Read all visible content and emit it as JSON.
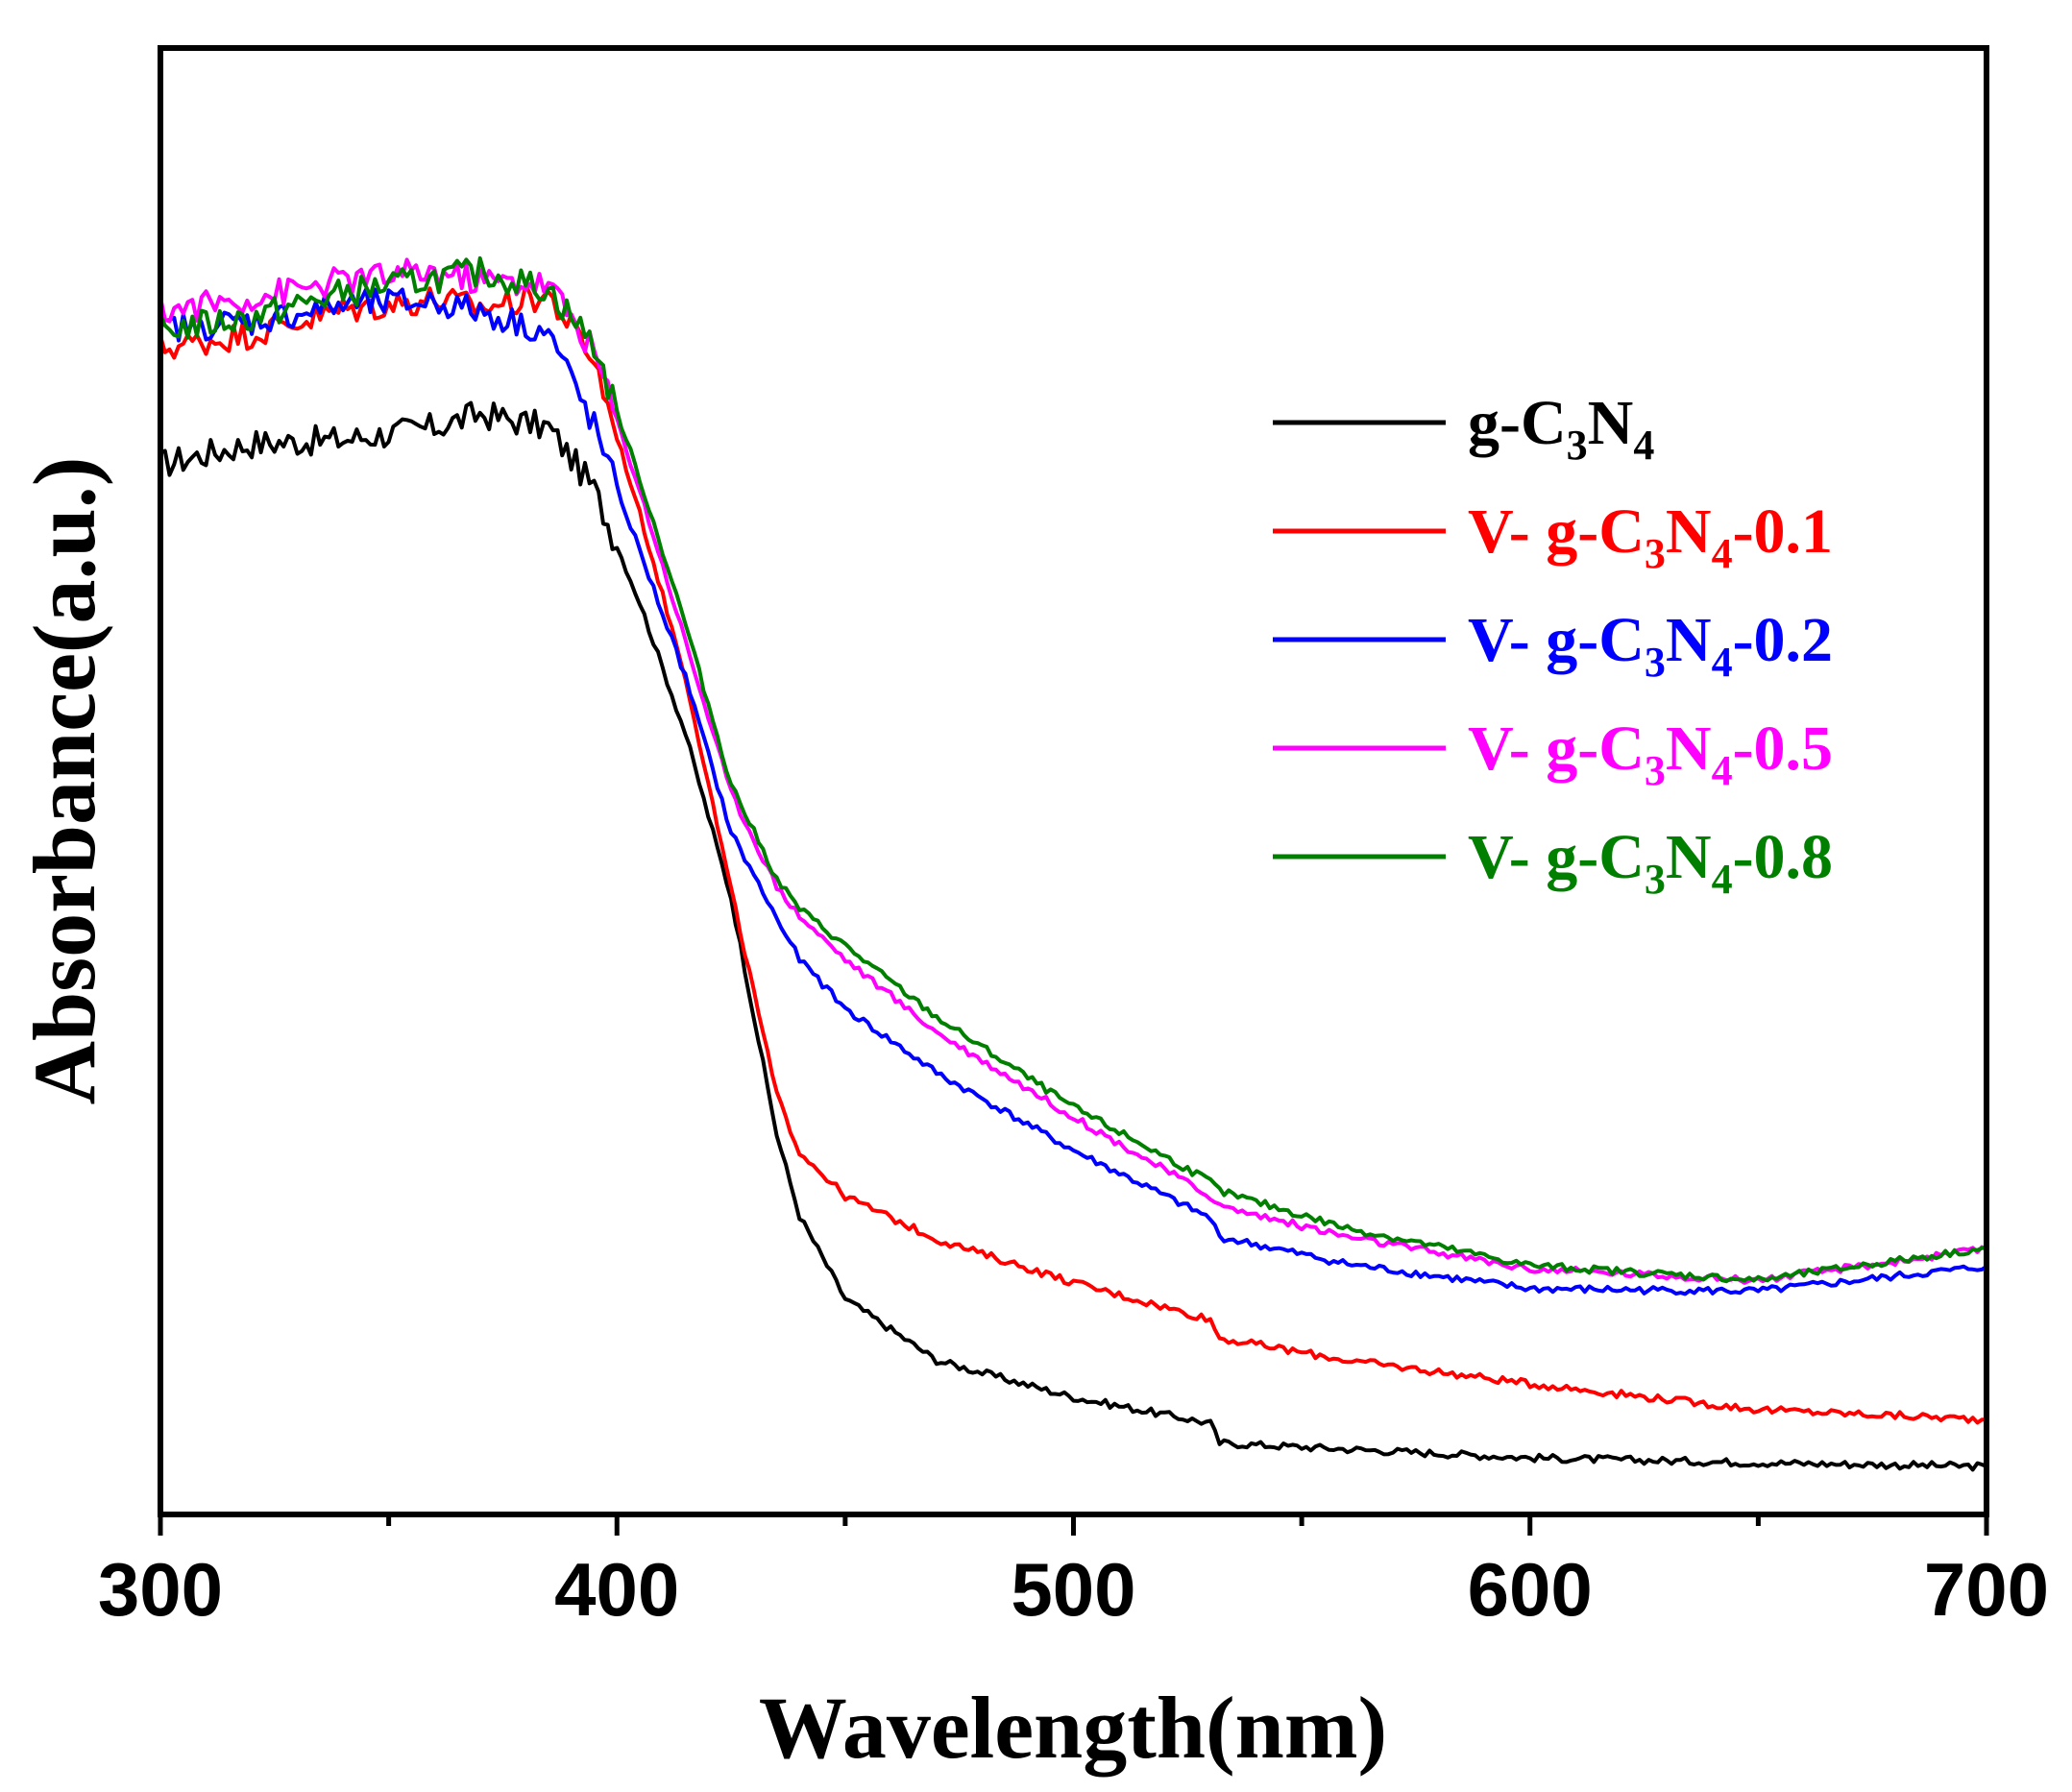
{
  "chart_data": {
    "type": "line",
    "xlabel": "Wavelength(nm)",
    "ylabel": "Absorbance(a.u.)",
    "xlim": [
      300,
      700
    ],
    "ylim": [
      0,
      1
    ],
    "xticks": [
      "300",
      "400",
      "500",
      "600",
      "700"
    ],
    "yticks": [],
    "grid": false,
    "legend_position": "right",
    "colors": {
      "black": "#000000",
      "red": "#ff0000",
      "blue": "#0000ff",
      "magenta": "#ff00ff",
      "green": "#007f00"
    },
    "series": [
      {
        "name": "g-C3N4",
        "label": {
          "pre": "g-C",
          "sub1": "3",
          "mid": "N",
          "sub2": "4",
          "post": ""
        },
        "color": "#000000",
        "x": [
          300,
          320,
          340,
          360,
          370,
          385,
          395,
          405,
          415,
          425,
          435,
          440,
          450,
          470,
          500,
          530,
          532,
          560,
          600,
          650,
          700
        ],
        "y": [
          0.826,
          0.843,
          0.846,
          0.856,
          0.867,
          0.856,
          0.806,
          0.714,
          0.608,
          0.475,
          0.283,
          0.217,
          0.15,
          0.1,
          0.07,
          0.049,
          0.033,
          0.028,
          0.021,
          0.017,
          0.014
        ]
      },
      {
        "name": "V- g-C3N4-0.1",
        "label": {
          "pre": "V- g-C",
          "sub1": "3",
          "mid": "N",
          "sub2": "4",
          "post": "-0.1"
        },
        "color": "#ff0000",
        "x": [
          300,
          320,
          340,
          360,
          370,
          385,
          395,
          405,
          415,
          425,
          435,
          440,
          450,
          470,
          500,
          530,
          532,
          560,
          600,
          650,
          700
        ],
        "y": [
          0.92,
          0.932,
          0.951,
          0.96,
          0.953,
          0.963,
          0.911,
          0.786,
          0.654,
          0.481,
          0.315,
          0.269,
          0.233,
          0.198,
          0.163,
          0.133,
          0.118,
          0.1,
          0.081,
          0.06,
          0.052
        ]
      },
      {
        "name": "V- g-C3N4-0.2",
        "label": {
          "pre": "V- g-C",
          "sub1": "3",
          "mid": "N",
          "sub2": "4",
          "post": "-0.2"
        },
        "color": "#0000ff",
        "x": [
          300,
          320,
          340,
          360,
          370,
          385,
          395,
          405,
          415,
          425,
          435,
          440,
          450,
          470,
          500,
          530,
          532,
          560,
          600,
          650,
          700
        ],
        "y": [
          0.936,
          0.942,
          0.955,
          0.958,
          0.95,
          0.933,
          0.857,
          0.756,
          0.654,
          0.528,
          0.458,
          0.425,
          0.385,
          0.333,
          0.27,
          0.215,
          0.2,
          0.178,
          0.158,
          0.156,
          0.176
        ]
      },
      {
        "name": "V- g-C3N4-0.5",
        "label": {
          "pre": "V- g-C",
          "sub1": "3",
          "mid": "N",
          "sub2": "4",
          "post": "-0.5"
        },
        "color": "#ff00ff",
        "x": [
          300,
          320,
          340,
          360,
          370,
          385,
          395,
          405,
          415,
          425,
          435,
          440,
          450,
          470,
          500,
          530,
          532,
          560,
          600,
          650,
          700
        ],
        "y": [
          0.95,
          0.961,
          0.975,
          0.982,
          0.975,
          0.972,
          0.918,
          0.805,
          0.683,
          0.56,
          0.484,
          0.46,
          0.425,
          0.366,
          0.297,
          0.233,
          0.225,
          0.2,
          0.174,
          0.165,
          0.19
        ]
      },
      {
        "name": "V- g-C3N4-0.8",
        "label": {
          "pre": "V- g-C",
          "sub1": "3",
          "mid": "N",
          "sub2": "4",
          "post": "-0.8"
        },
        "color": "#007f00",
        "x": [
          300,
          320,
          340,
          360,
          370,
          385,
          395,
          405,
          415,
          425,
          435,
          440,
          450,
          470,
          500,
          530,
          532,
          560,
          600,
          650,
          700
        ],
        "y": [
          0.935,
          0.945,
          0.965,
          0.977,
          0.982,
          0.968,
          0.923,
          0.814,
          0.697,
          0.567,
          0.49,
          0.466,
          0.436,
          0.378,
          0.305,
          0.245,
          0.237,
          0.207,
          0.177,
          0.165,
          0.191
        ]
      }
    ]
  }
}
